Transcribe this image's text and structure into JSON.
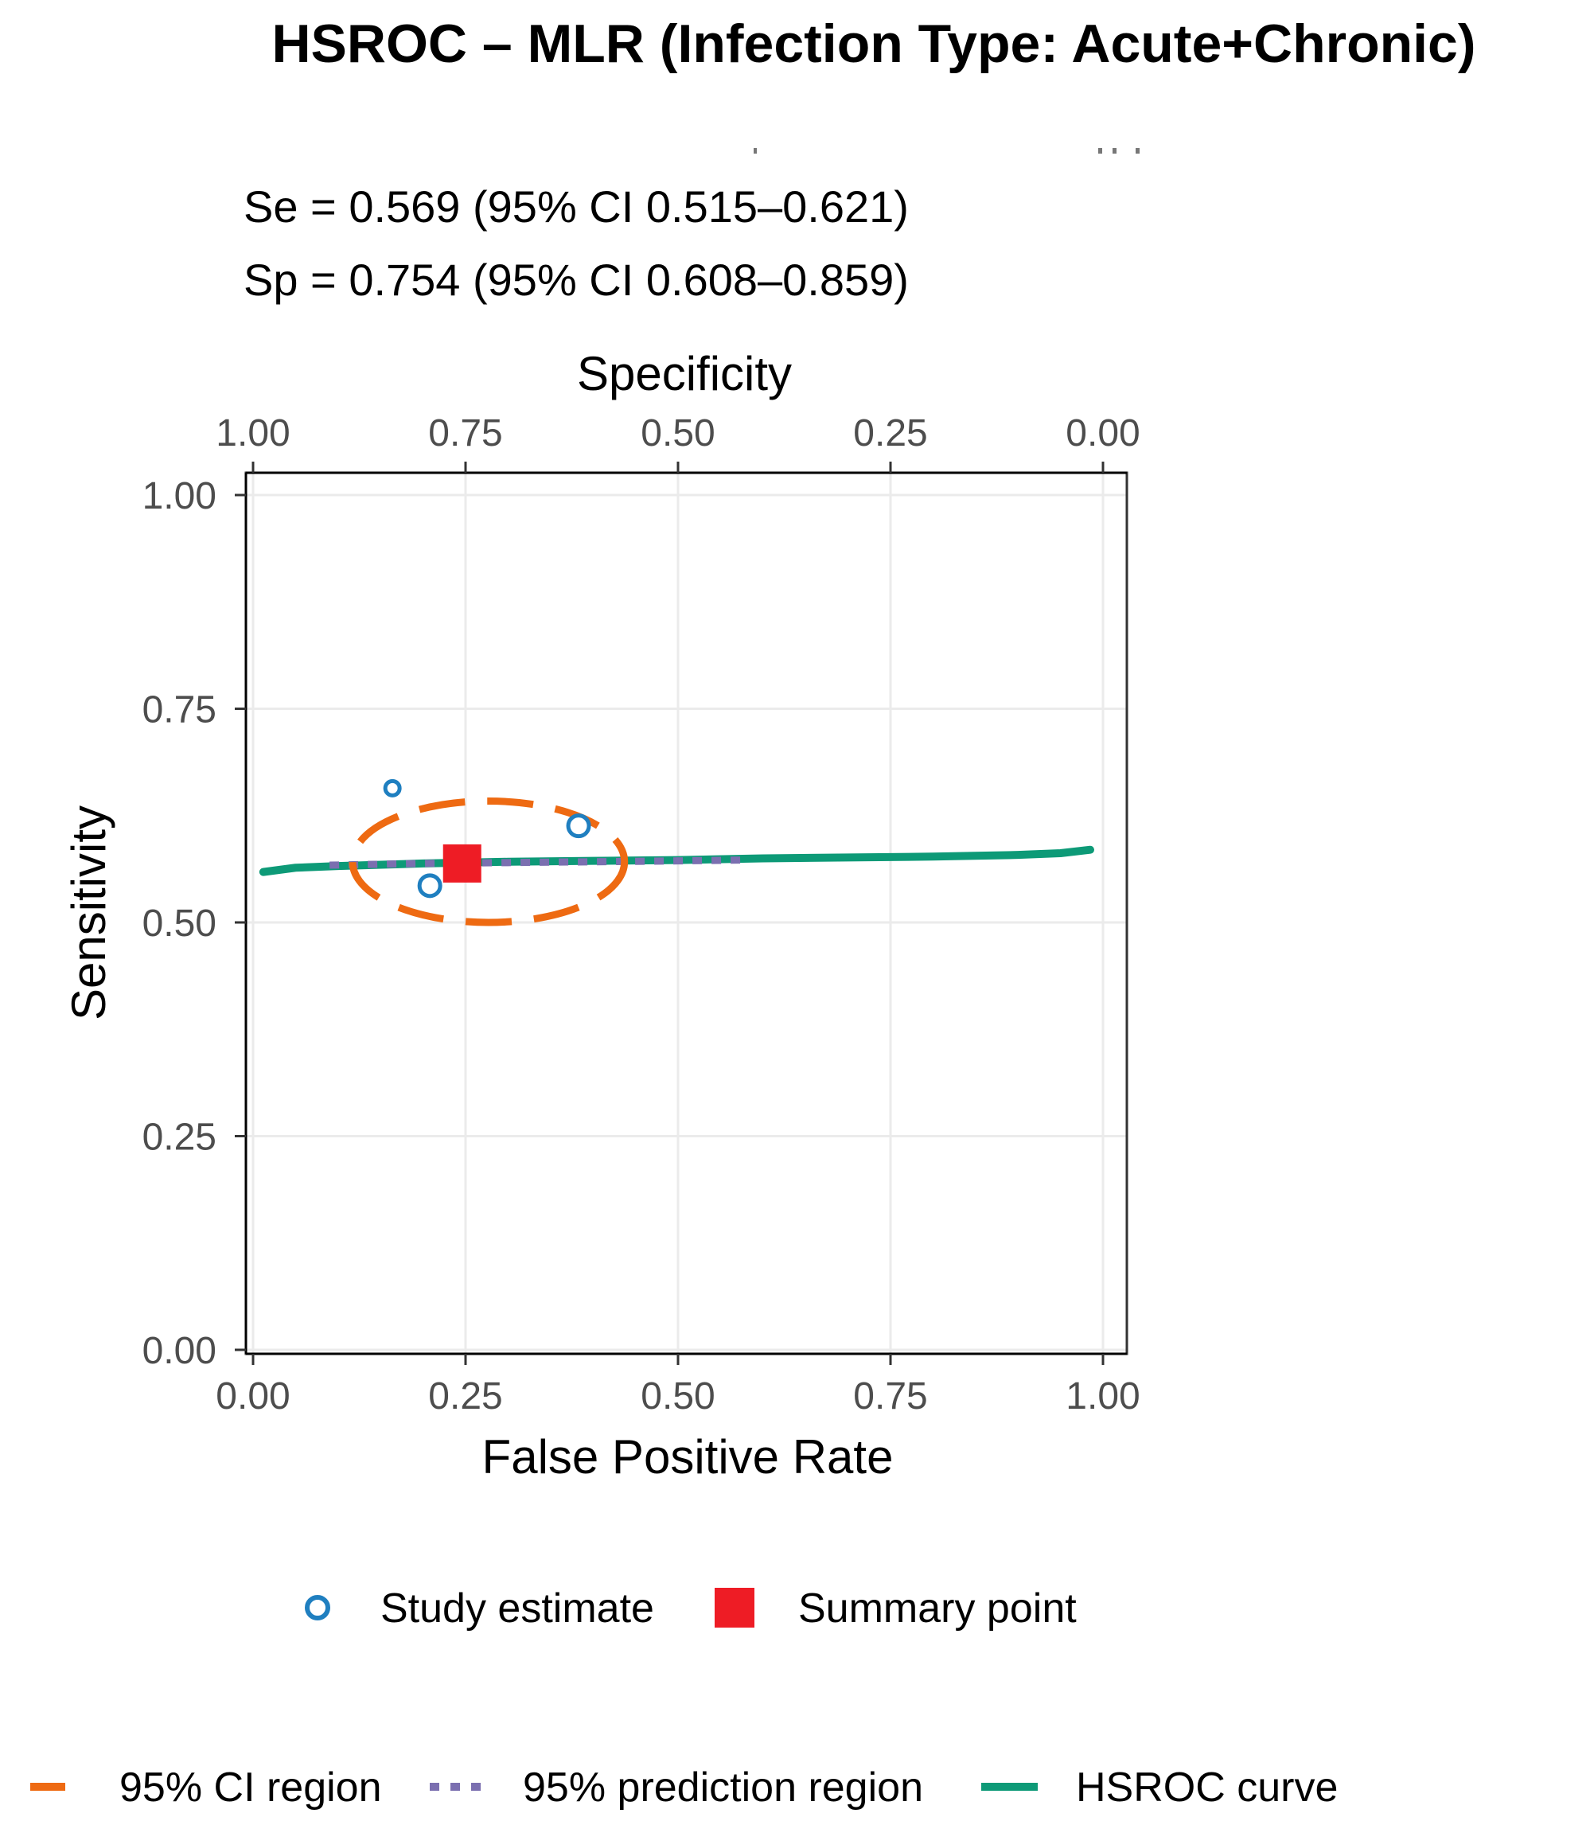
{
  "chart_data": {
    "type": "scatter",
    "title": "HSROC – MLR (Infection Type: Acute+Chronic)",
    "annotations": [
      "Se = 0.569 (95% CI 0.515–0.621)",
      "Sp = 0.754 (95% CI 0.608–0.859)"
    ],
    "xlabel": "False Positive Rate",
    "ylabel": "Sensitivity",
    "x2label": "Specificity",
    "xlim": [
      0,
      1
    ],
    "ylim": [
      0,
      1
    ],
    "x_ticks": [
      "0.00",
      "0.25",
      "0.50",
      "0.75",
      "1.00"
    ],
    "y_ticks": [
      "0.00",
      "0.25",
      "0.50",
      "0.75",
      "1.00"
    ],
    "x2_ticks": [
      "1.00",
      "0.75",
      "0.50",
      "0.25",
      "0.00"
    ],
    "grid": true,
    "series": [
      {
        "name": "Study estimate",
        "kind": "points",
        "color": "#1f7fc0",
        "x": [
          0.164,
          0.208,
          0.383
        ],
        "y": [
          0.657,
          0.543,
          0.613
        ]
      },
      {
        "name": "Summary point",
        "kind": "point",
        "color": "#ee1c25",
        "x": [
          0.246
        ],
        "y": [
          0.569
        ]
      },
      {
        "name": "95% CI region",
        "kind": "ellipse",
        "color": "#ee6a12",
        "center": [
          0.277,
          0.571
        ],
        "rx": 0.16,
        "ry": 0.071
      },
      {
        "name": "95% prediction region",
        "kind": "line",
        "color": "#7b6fb0",
        "x": [
          0.09,
          0.2,
          0.3,
          0.4,
          0.5,
          0.575
        ],
        "y": [
          0.567,
          0.569,
          0.57,
          0.571,
          0.572,
          0.573
        ]
      },
      {
        "name": "HSROC curve",
        "kind": "line",
        "color": "#0d9a77",
        "x": [
          0.012,
          0.05,
          0.1,
          0.2,
          0.3,
          0.4,
          0.5,
          0.6,
          0.7,
          0.8,
          0.9,
          0.95,
          0.985
        ],
        "y": [
          0.559,
          0.564,
          0.566,
          0.569,
          0.571,
          0.572,
          0.573,
          0.575,
          0.576,
          0.577,
          0.579,
          0.581,
          0.585
        ]
      }
    ],
    "legend": {
      "placement": "bottom",
      "row1": [
        {
          "label": "Study estimate",
          "symbol": "open-circle",
          "color": "#1f7fc0"
        },
        {
          "label": "Summary point",
          "symbol": "square",
          "color": "#ee1c25"
        }
      ],
      "row2": [
        {
          "label": "95% CI region",
          "symbol": "dash",
          "color": "#ee6a12"
        },
        {
          "label": "95% prediction region",
          "symbol": "dots",
          "color": "#7b6fb0"
        },
        {
          "label": "HSROC curve",
          "symbol": "solid",
          "color": "#0d9a77"
        }
      ]
    }
  }
}
